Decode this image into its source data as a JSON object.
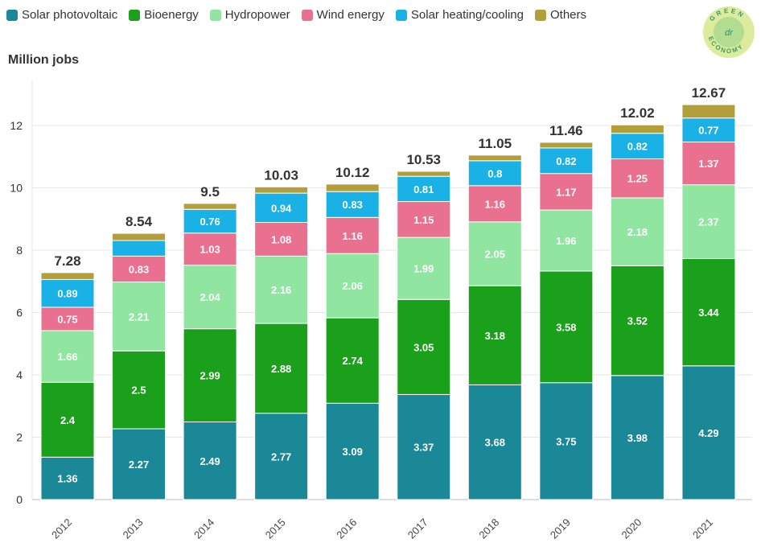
{
  "chart_data": {
    "type": "bar",
    "stacked": true,
    "ylabel": "Million jobs",
    "ylim": [
      0,
      13
    ],
    "yticks": [
      0,
      2,
      4,
      6,
      8,
      10,
      12
    ],
    "grid": true,
    "legend_position": "top-left",
    "categories": [
      "2012",
      "2013",
      "2014",
      "2015",
      "2016",
      "2017",
      "2018",
      "2019",
      "2020",
      "2021"
    ],
    "series": [
      {
        "name": "Solar photovoltaic",
        "color": "#1a8896",
        "values": [
          1.36,
          2.27,
          2.49,
          2.77,
          3.09,
          3.37,
          3.68,
          3.75,
          3.98,
          4.29
        ],
        "labeled": true
      },
      {
        "name": "Bioenergy",
        "color": "#1aa01a",
        "values": [
          2.4,
          2.5,
          2.99,
          2.88,
          2.74,
          3.05,
          3.18,
          3.58,
          3.52,
          3.44
        ],
        "labeled": true
      },
      {
        "name": "Hydropower",
        "color": "#90e6a0",
        "values": [
          1.66,
          2.21,
          2.04,
          2.16,
          2.06,
          1.99,
          2.05,
          1.96,
          2.18,
          2.37
        ],
        "labeled": true
      },
      {
        "name": "Wind energy",
        "color": "#e9708f",
        "values": [
          0.75,
          0.83,
          1.03,
          1.08,
          1.16,
          1.15,
          1.16,
          1.17,
          1.25,
          1.37
        ],
        "labeled": true
      },
      {
        "name": "Solar heating/cooling",
        "color": "#1ab2e6",
        "values": [
          0.89,
          0.5,
          0.76,
          0.94,
          0.83,
          0.81,
          0.8,
          0.82,
          0.82,
          0.77
        ],
        "labeled": [
          true,
          false,
          true,
          true,
          true,
          true,
          true,
          true,
          true,
          true
        ]
      },
      {
        "name": "Others",
        "color": "#b39e3c",
        "values": [
          0.22,
          0.23,
          0.19,
          0.2,
          0.24,
          0.16,
          0.18,
          0.18,
          0.27,
          0.43
        ],
        "labeled": false
      }
    ],
    "totals": [
      "7.28",
      "8.54",
      "9.5",
      "10.03",
      "10.12",
      "10.53",
      "11.05",
      "11.46",
      "12.02",
      "12.67"
    ]
  },
  "logo": {
    "text": "GREEN ECONOMY",
    "monogram": "dr"
  }
}
